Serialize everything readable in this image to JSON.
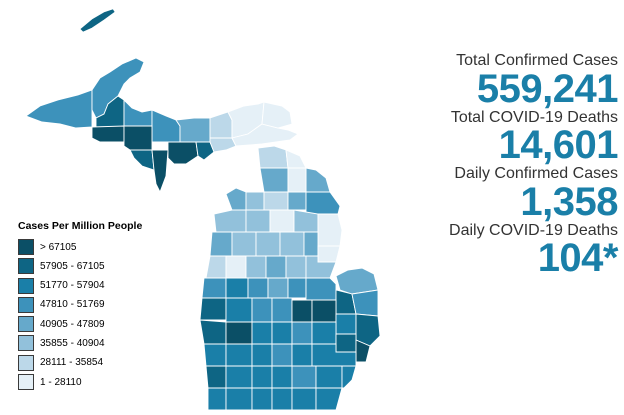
{
  "legend": {
    "title": "Cases Per Million People",
    "items": [
      {
        "label": "> 67105",
        "color": "#0b4f66"
      },
      {
        "label": "57905 - 67105",
        "color": "#0e6584"
      },
      {
        "label": "51770 - 57904",
        "color": "#1a7fa8"
      },
      {
        "label": "47810 - 51769",
        "color": "#3d92bb"
      },
      {
        "label": "40905 - 47809",
        "color": "#66a9cb"
      },
      {
        "label": "35855 - 40904",
        "color": "#92c1db"
      },
      {
        "label": "28111 - 35854",
        "color": "#bcd8e9"
      },
      {
        "label": "1 - 28110",
        "color": "#e5f0f7"
      }
    ]
  },
  "stats": [
    {
      "label": "Total Confirmed Cases",
      "value": "559,241"
    },
    {
      "label": "Total COVID-19 Deaths",
      "value": "14,601"
    },
    {
      "label": "Daily Confirmed Cases",
      "value": "1,358"
    },
    {
      "label": "Daily COVID-19 Deaths",
      "value": "104*"
    }
  ],
  "colors": {
    "stat_value": "#1a7fa8",
    "stat_label": "#333333",
    "county_border": "#ffffff"
  }
}
